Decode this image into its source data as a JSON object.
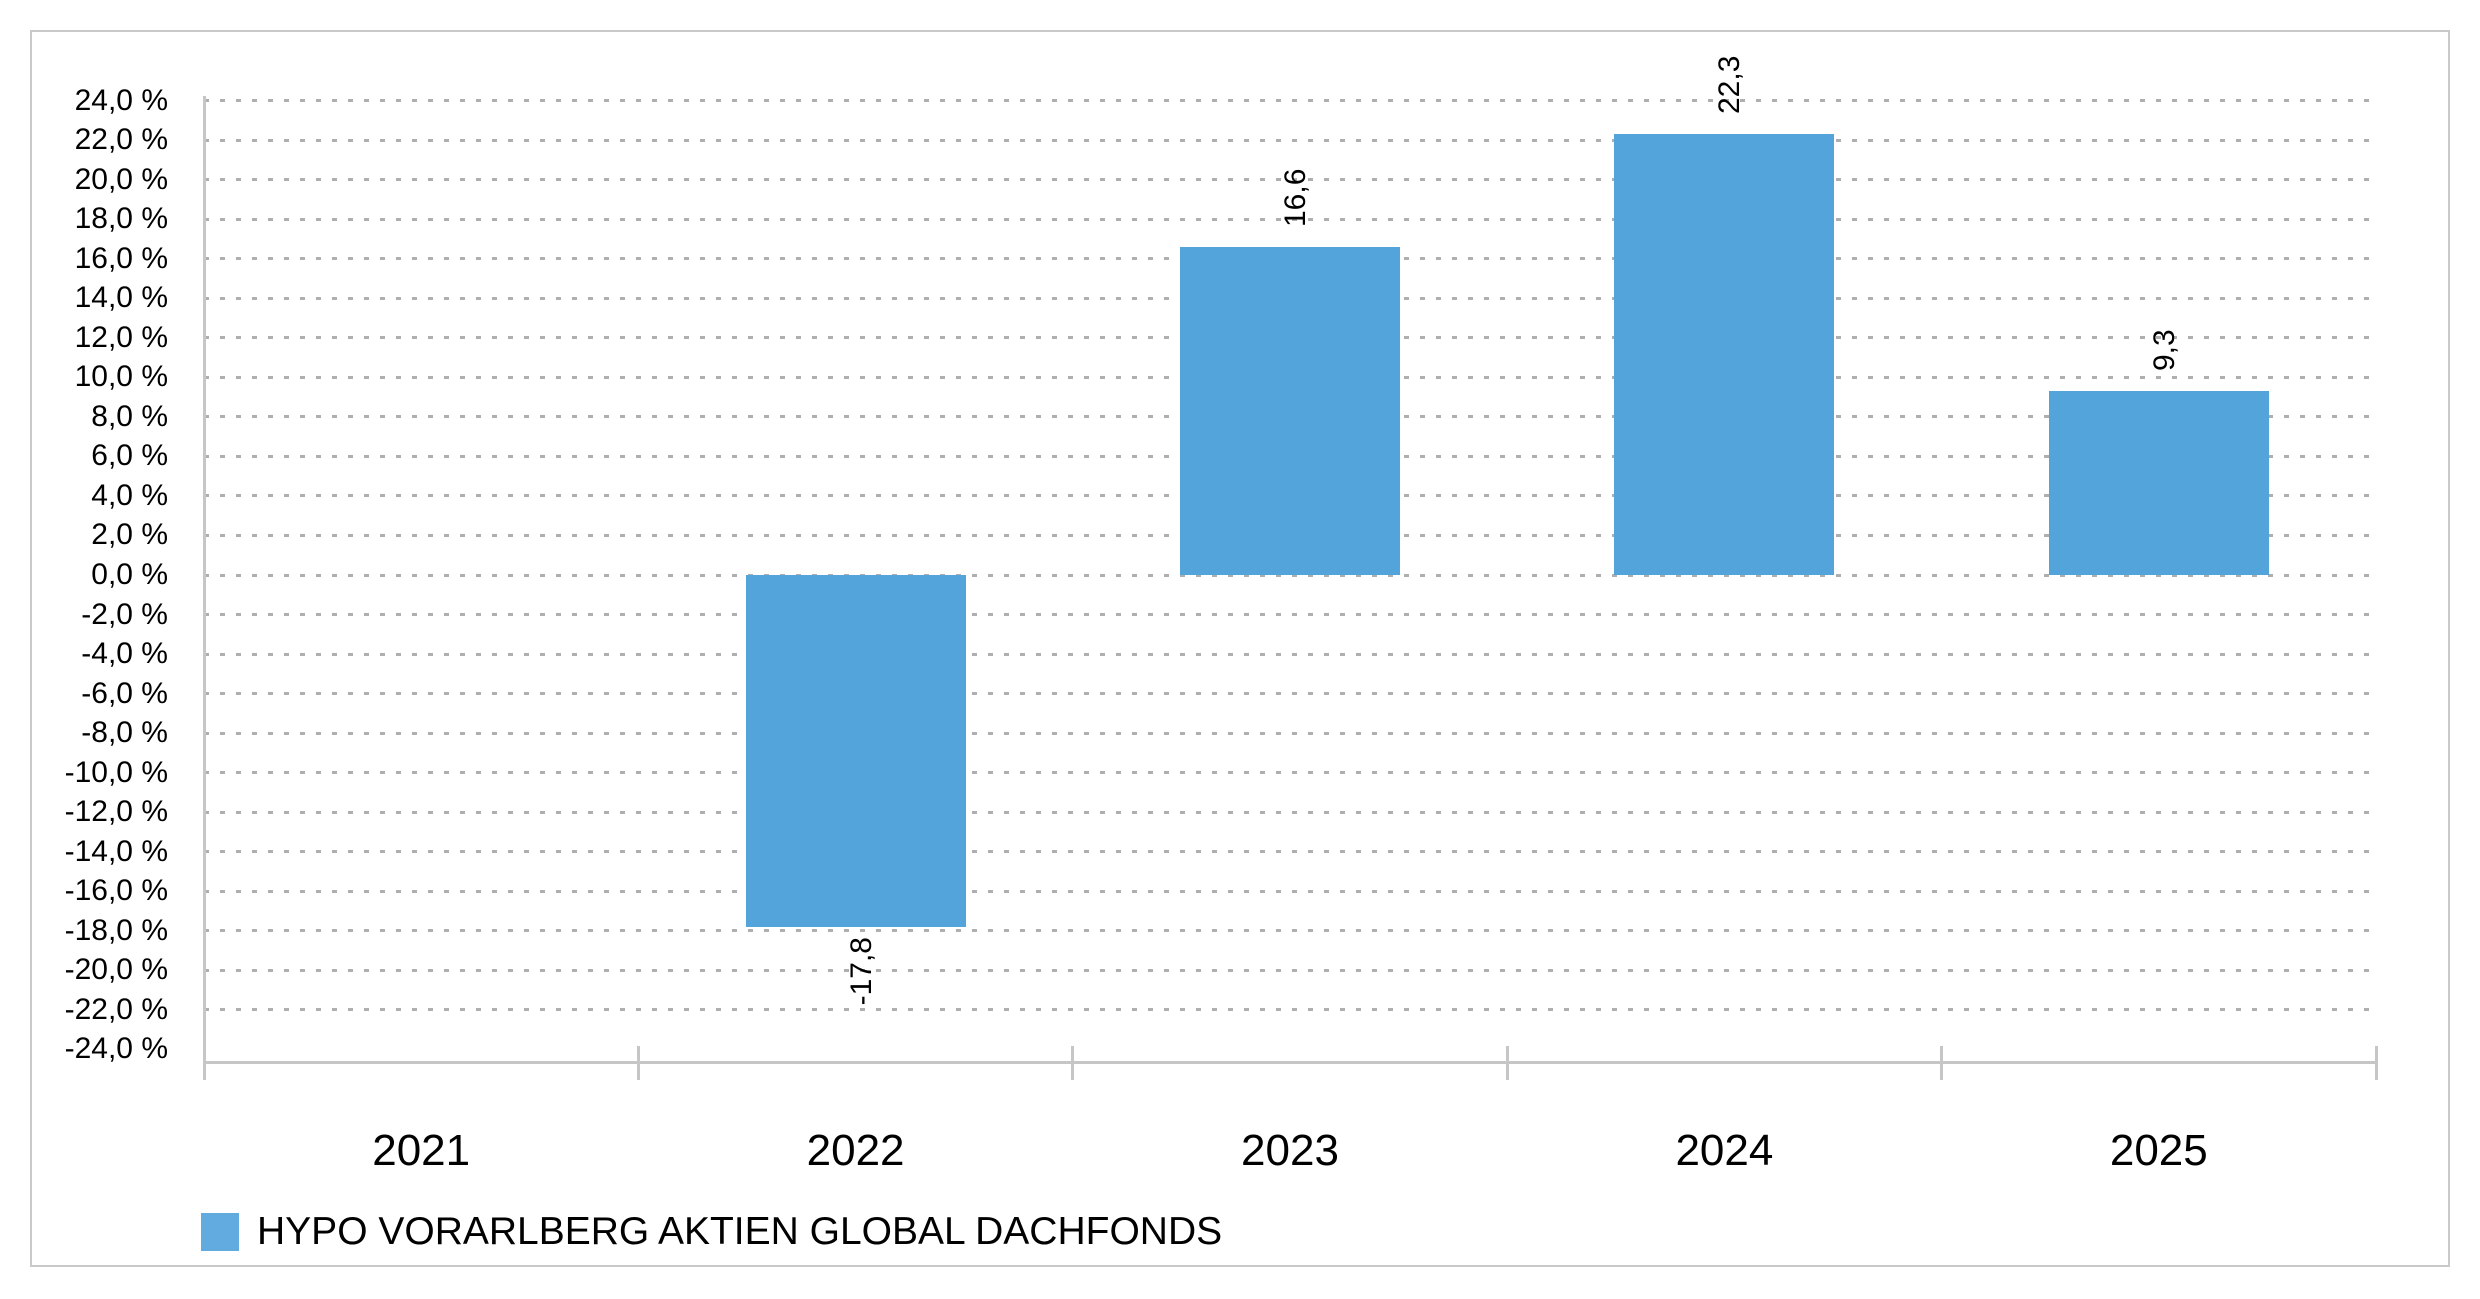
{
  "chart_data": {
    "type": "bar",
    "title": "",
    "categories": [
      "2021",
      "2022",
      "2023",
      "2024",
      "2025"
    ],
    "series": [
      {
        "name": "HYPO VORARLBERG AKTIEN GLOBAL DACHFONDS",
        "values": [
          null,
          -17.8,
          16.6,
          22.3,
          9.3
        ],
        "value_labels": [
          null,
          "-17,8",
          "16,6",
          "22,3",
          "9,3"
        ],
        "color": "#52A4DA"
      }
    ],
    "y_axis": {
      "unit": "%",
      "min": -24,
      "max": 24,
      "step": 2,
      "tick_values": [
        24,
        22,
        20,
        18,
        16,
        14,
        12,
        10,
        8,
        6,
        4,
        2,
        0,
        -2,
        -4,
        -6,
        -8,
        -10,
        -12,
        -14,
        -16,
        -18,
        -20,
        -22,
        -24
      ],
      "tick_labels": [
        "24,0 %",
        "22,0 %",
        "20,0 %",
        "18,0 %",
        "16,0 %",
        "14,0 %",
        "12,0 %",
        "10,0 %",
        "8,0 %",
        "6,0 %",
        "4,0 %",
        "2,0 %",
        "0,0 %",
        "-2,0 %",
        "-4,0 %",
        "-6,0 %",
        "-8,0 %",
        "-10,0 %",
        "-12,0 %",
        "-14,0 %",
        "-16,0 %",
        "-18,0 %",
        "-20,0 %",
        "-22,0 %",
        "-24,0 %"
      ]
    },
    "grid": {
      "style": "dashed-horizontal",
      "color": "#AFAFAF"
    },
    "axis_color": "#C6C6C6",
    "value_label_rotation": -90,
    "legend": {
      "position": "bottom-left",
      "swatch_color": "#62ABE0",
      "label": "HYPO VORARLBERG AKTIEN GLOBAL DACHFONDS"
    }
  }
}
